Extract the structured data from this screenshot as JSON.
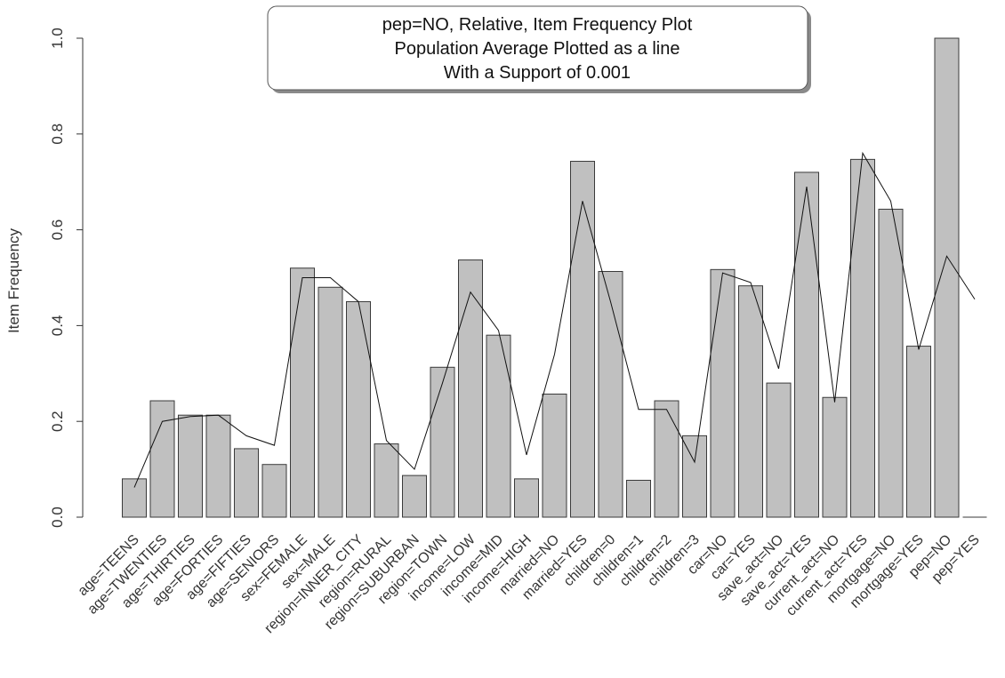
{
  "chart_data": {
    "type": "bar",
    "title_lines": [
      "pep=NO, Relative, Item Frequency Plot",
      "Population Average Plotted as a line",
      "With a Support of 0.001"
    ],
    "xlabel": "",
    "ylabel": "Item Frequency",
    "ylim": [
      0,
      1.0
    ],
    "yticks": [
      "0.0",
      "0.2",
      "0.4",
      "0.6",
      "0.8",
      "1.0"
    ],
    "grid": false,
    "categories": [
      "age=TEENS",
      "age=TWENTIES",
      "age=THIRTIES",
      "age=FORTIES",
      "age=FIFTIES",
      "age=SENIORS",
      "sex=FEMALE",
      "sex=MALE",
      "region=INNER_CITY",
      "region=RURAL",
      "region=SUBURBAN",
      "region=TOWN",
      "income=LOW",
      "income=MID",
      "income=HIGH",
      "married=NO",
      "married=YES",
      "children=0",
      "children=1",
      "children=2",
      "children=3",
      "car=NO",
      "car=YES",
      "save_act=NO",
      "save_act=YES",
      "current_act=NO",
      "current_act=YES",
      "mortgage=NO",
      "mortgage=YES",
      "pep=NO",
      "pep=YES"
    ],
    "series": [
      {
        "type": "bar",
        "values": [
          0.08,
          0.243,
          0.213,
          0.213,
          0.143,
          0.11,
          0.52,
          0.48,
          0.45,
          0.153,
          0.087,
          0.313,
          0.537,
          0.38,
          0.08,
          0.257,
          0.743,
          0.513,
          0.077,
          0.243,
          0.17,
          0.517,
          0.483,
          0.28,
          0.72,
          0.25,
          0.747,
          0.643,
          0.357,
          1.0,
          0.0
        ]
      },
      {
        "type": "line",
        "values": [
          0.062,
          0.2,
          0.21,
          0.213,
          0.17,
          0.15,
          0.5,
          0.5,
          0.45,
          0.16,
          0.1,
          0.28,
          0.47,
          0.39,
          0.13,
          0.34,
          0.66,
          0.45,
          0.225,
          0.225,
          0.115,
          0.51,
          0.49,
          0.31,
          0.69,
          0.24,
          0.76,
          0.66,
          0.35,
          0.545,
          0.455
        ]
      }
    ],
    "colors": {
      "bar_fill": "#c0c0c0",
      "bar_stroke": "#3a3a3a",
      "line": "#111111",
      "axis": "#333333"
    }
  }
}
